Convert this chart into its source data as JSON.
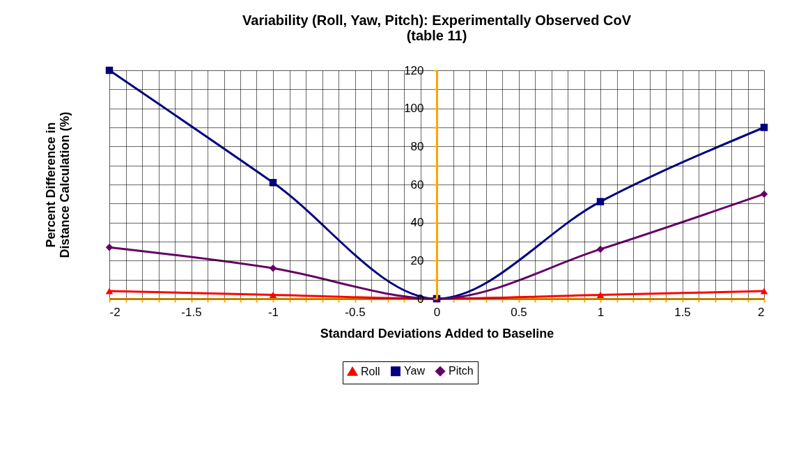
{
  "chart_data": {
    "type": "line",
    "title": "Variability (Roll, Yaw, Pitch): Experimentally Observed CoV\n(table 11)",
    "xlabel": "Standard Deviations Added to Baseline",
    "ylabel": "Percent Difference in\nDistance Calculation (%)",
    "x": [
      -2,
      -1,
      0,
      1,
      2
    ],
    "series": [
      {
        "name": "Roll",
        "color": "#ff0000",
        "marker": "triangle",
        "values": [
          4,
          2,
          0,
          2,
          4
        ]
      },
      {
        "name": "Yaw",
        "color": "#000080",
        "marker": "square",
        "values": [
          120,
          61,
          0,
          51,
          90
        ]
      },
      {
        "name": "Pitch",
        "color": "#660066",
        "marker": "diamond",
        "values": [
          27,
          16,
          0,
          26,
          55
        ]
      }
    ],
    "xlim": [
      -2,
      2
    ],
    "ylim": [
      0,
      120
    ],
    "xticks": [
      -2,
      {
        "value": -1.9,
        "label": null
      },
      {
        "value": -1.8,
        "label": null
      },
      {
        "value": -1.7,
        "label": null
      },
      {
        "value": -1.6,
        "label": null
      },
      -1.5,
      {
        "value": -1.4,
        "label": null
      },
      {
        "value": -1.3,
        "label": null
      },
      {
        "value": -1.2,
        "label": null
      },
      {
        "value": -1.1,
        "label": null
      },
      -1,
      {
        "value": -0.9,
        "label": null
      },
      {
        "value": -0.8,
        "label": null
      },
      {
        "value": -0.7,
        "label": null
      },
      {
        "value": -0.6,
        "label": null
      },
      -0.5,
      {
        "value": -0.4,
        "label": null
      },
      {
        "value": -0.3,
        "label": null
      },
      {
        "value": -0.2,
        "label": null
      },
      {
        "value": -0.1,
        "label": null
      },
      0,
      {
        "value": 0.1,
        "label": null
      },
      {
        "value": 0.2,
        "label": null
      },
      {
        "value": 0.3,
        "label": null
      },
      {
        "value": 0.4,
        "label": null
      },
      0.5,
      {
        "value": 0.6,
        "label": null
      },
      {
        "value": 0.7,
        "label": null
      },
      {
        "value": 0.8,
        "label": null
      },
      {
        "value": 0.9,
        "label": null
      },
      1,
      {
        "value": 1.1,
        "label": null
      },
      {
        "value": 1.2,
        "label": null
      },
      {
        "value": 1.3,
        "label": null
      },
      {
        "value": 1.4,
        "label": null
      },
      1.5,
      {
        "value": 1.6,
        "label": null
      },
      {
        "value": 1.7,
        "label": null
      },
      {
        "value": 1.8,
        "label": null
      },
      {
        "value": 1.9,
        "label": null
      },
      2
    ],
    "yticks": [
      0,
      {
        "value": 10,
        "label": null
      },
      20,
      {
        "value": 30,
        "label": null
      },
      40,
      {
        "value": 50,
        "label": null
      },
      60,
      {
        "value": 70,
        "label": null
      },
      80,
      {
        "value": 90,
        "label": null
      },
      100,
      {
        "value": 110,
        "label": null
      },
      120
    ],
    "grid": true,
    "legend": "bottom",
    "line_style": "solid"
  }
}
